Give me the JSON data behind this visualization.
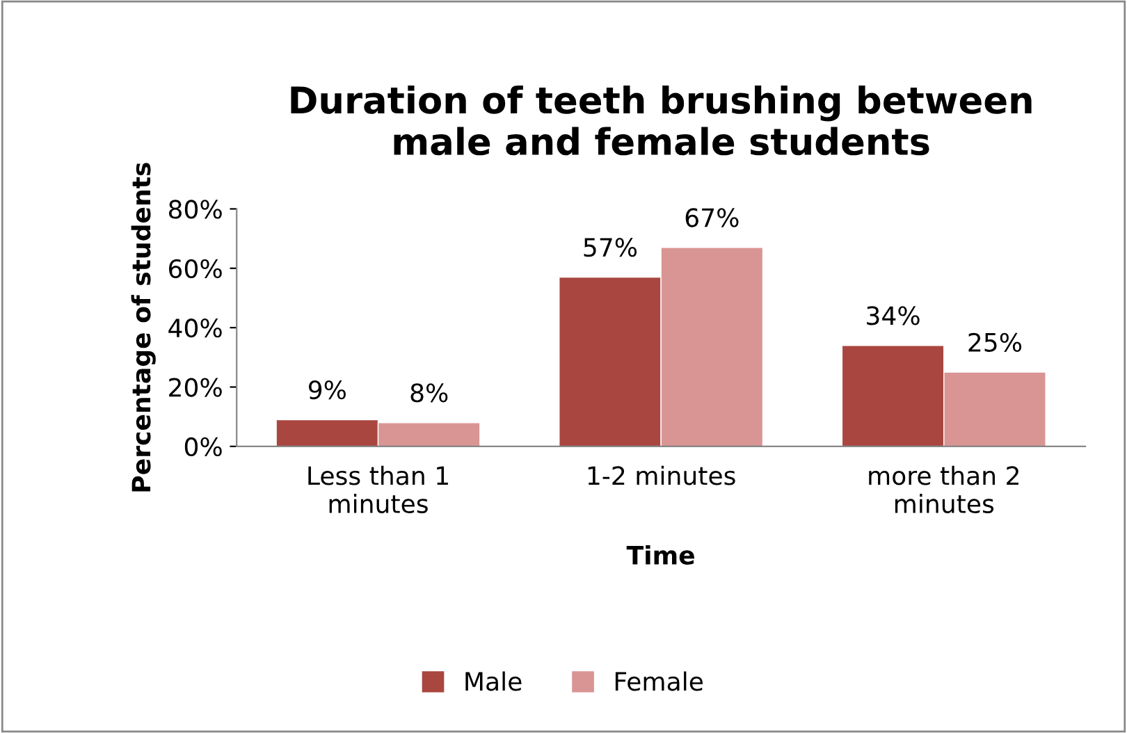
{
  "chart_data": {
    "type": "bar",
    "title": "Duration of teeth brushing between\nmale and female students",
    "xlabel": "Time",
    "ylabel": "Percentage of students",
    "categories": [
      "Less than 1\nminutes",
      "1-2 minutes",
      "more than 2\nminutes"
    ],
    "series": [
      {
        "name": "Male",
        "color": "#a9463f",
        "values": [
          9,
          57,
          34
        ],
        "value_labels": [
          "9%",
          "57%",
          "34%"
        ]
      },
      {
        "name": "Female",
        "color": "#d99594",
        "values": [
          8,
          67,
          25
        ],
        "value_labels": [
          "8%",
          "67%",
          "25%"
        ]
      }
    ],
    "ylim": [
      0,
      80
    ],
    "yticks": [
      {
        "value": 0,
        "label": "0%"
      },
      {
        "value": 20,
        "label": "20%"
      },
      {
        "value": 40,
        "label": "40%"
      },
      {
        "value": 60,
        "label": "60%"
      },
      {
        "value": 80,
        "label": "80%"
      }
    ],
    "grid": false,
    "legend": "bottom"
  }
}
